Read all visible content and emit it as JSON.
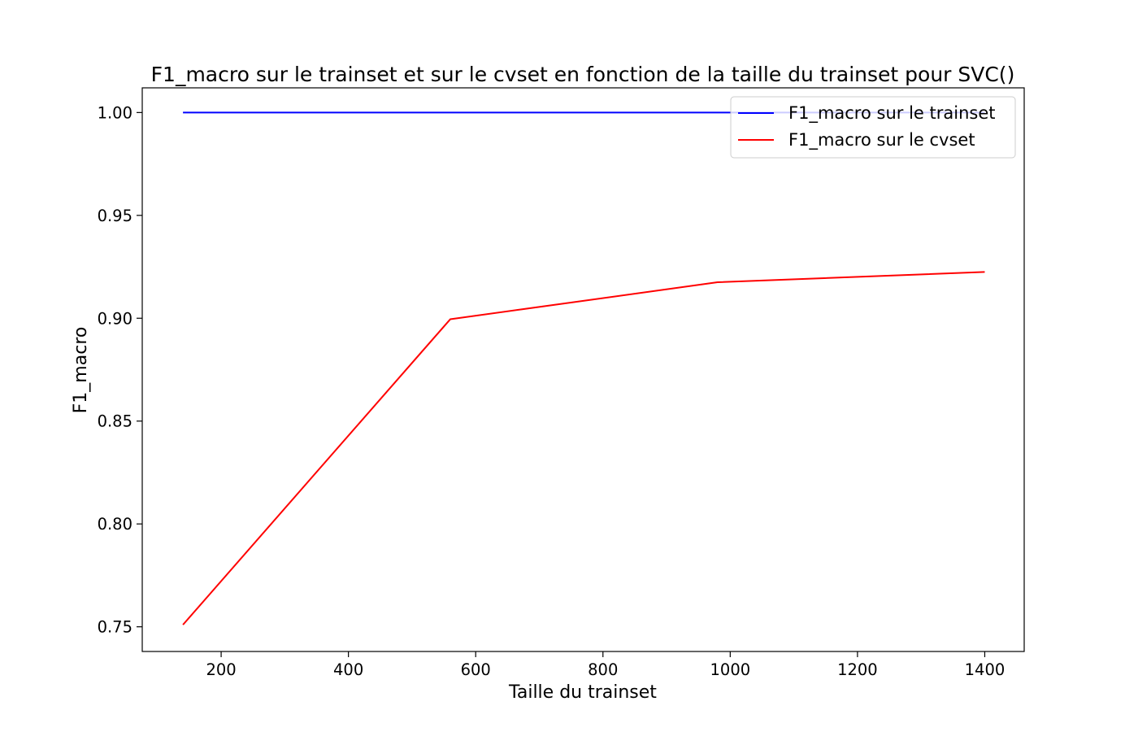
{
  "chart_data": {
    "type": "line",
    "title": "F1_macro sur le trainset et sur le cvset en fonction de la taille du trainset pour SVC()",
    "xlabel": "Taille du trainset",
    "ylabel": "F1_macro",
    "xlim": [
      76,
      1462
    ],
    "ylim": [
      0.738,
      1.012
    ],
    "xticks": [
      200,
      400,
      600,
      800,
      1000,
      1200,
      1400
    ],
    "xtick_labels": [
      "200",
      "400",
      "600",
      "800",
      "1000",
      "1200",
      "1400"
    ],
    "yticks": [
      0.75,
      0.8,
      0.85,
      0.9,
      0.95,
      1.0
    ],
    "ytick_labels": [
      "0.75",
      "0.80",
      "0.85",
      "0.90",
      "0.95",
      "1.00"
    ],
    "grid": false,
    "legend_position": "top-right",
    "x": [
      140,
      560,
      980,
      1400
    ],
    "series": [
      {
        "name": "F1_macro sur le trainset",
        "values": [
          1.0,
          1.0,
          1.0,
          1.0
        ],
        "color": "#0000ff"
      },
      {
        "name": "F1_macro sur le cvset",
        "values": [
          0.751,
          0.8995,
          0.9175,
          0.9225
        ],
        "color": "#ff0000"
      }
    ]
  }
}
